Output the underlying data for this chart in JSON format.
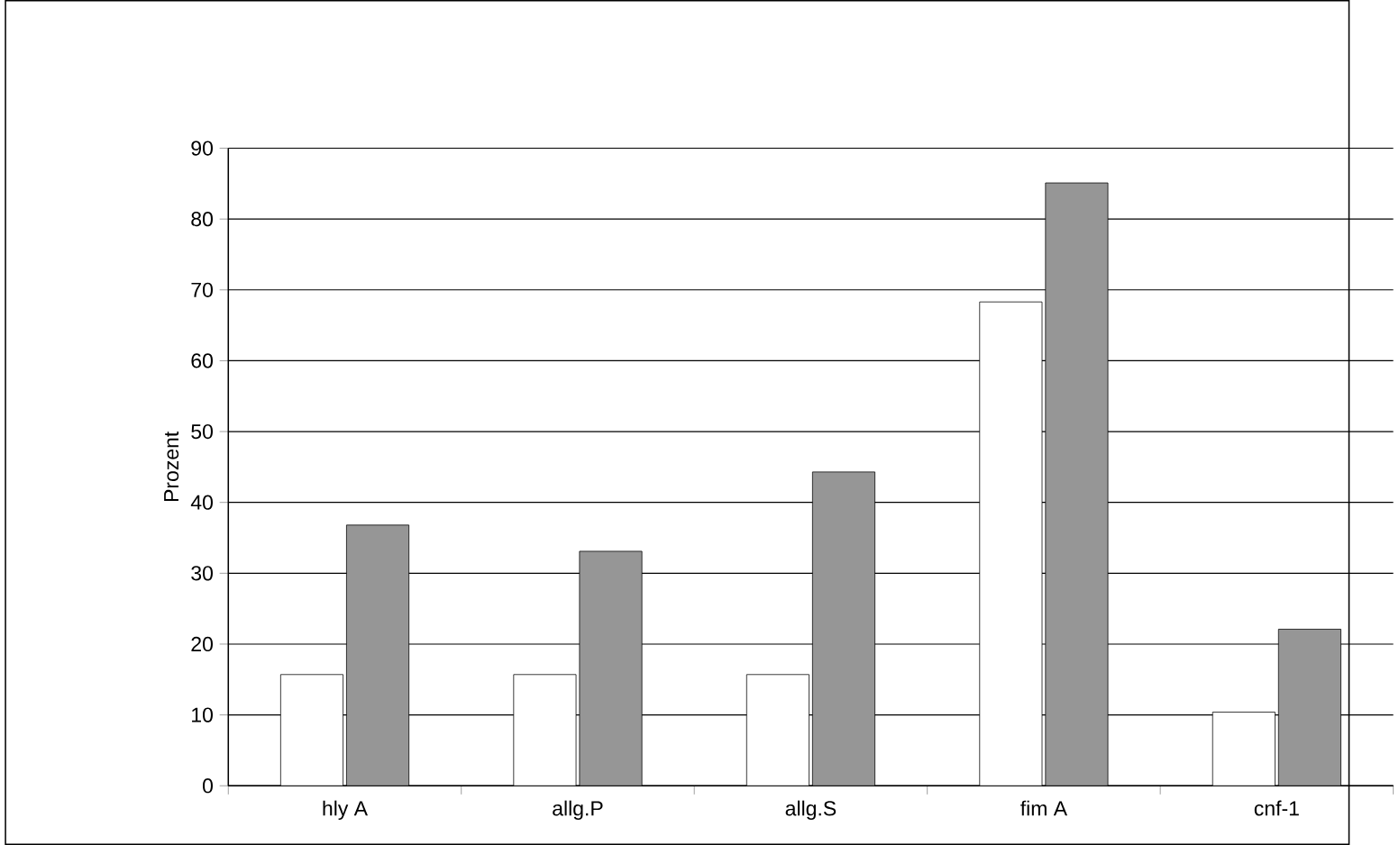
{
  "chart_data": {
    "type": "bar",
    "ylabel": "Prozent",
    "categories": [
      "hly A",
      "allg.P",
      "allg.S",
      "fim A",
      "cnf-1"
    ],
    "series": [
      {
        "color": "#ffffff",
        "values": [
          15.7,
          15.7,
          15.7,
          68.3,
          10.4
        ]
      },
      {
        "color": "#969696",
        "values": [
          36.8,
          33.1,
          44.3,
          85.1,
          22.1
        ]
      }
    ],
    "ylim": [
      0,
      90
    ],
    "yticks": [
      0,
      10,
      20,
      30,
      40,
      50,
      60,
      70,
      80,
      90
    ],
    "grid": "y"
  }
}
